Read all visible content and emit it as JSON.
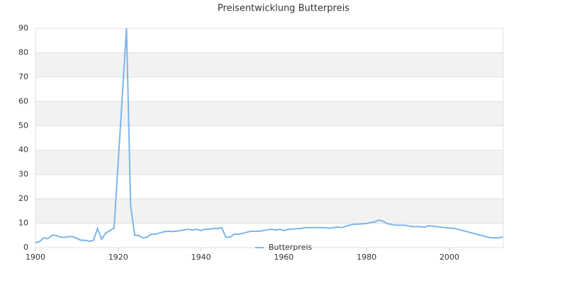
{
  "chart_data": {
    "type": "line",
    "title": "Preisentwicklung Butterpreis",
    "x": [
      1900,
      1901,
      1902,
      1903,
      1904,
      1905,
      1906,
      1907,
      1908,
      1909,
      1910,
      1911,
      1912,
      1913,
      1914,
      1915,
      1916,
      1917,
      1918,
      1919,
      1922,
      1923,
      1924,
      1925,
      1926,
      1927,
      1928,
      1929,
      1930,
      1931,
      1932,
      1933,
      1934,
      1935,
      1936,
      1937,
      1938,
      1939,
      1940,
      1941,
      1942,
      1943,
      1944,
      1945,
      1946,
      1947,
      1948,
      1949,
      1950,
      1951,
      1952,
      1953,
      1954,
      1955,
      1956,
      1957,
      1958,
      1959,
      1960,
      1961,
      1962,
      1963,
      1964,
      1965,
      1966,
      1967,
      1968,
      1969,
      1970,
      1971,
      1972,
      1973,
      1974,
      1975,
      1976,
      1977,
      1978,
      1979,
      1980,
      1981,
      1982,
      1983,
      1984,
      1985,
      1986,
      1987,
      1988,
      1989,
      1990,
      1991,
      1992,
      1993,
      1994,
      1995,
      2000,
      2001,
      2010,
      2012,
      2013
    ],
    "series": [
      {
        "name": "Butterpreis",
        "color": "#7cb5ec",
        "values": [
          2,
          2.5,
          4,
          3.7,
          5,
          5,
          4.3,
          4.2,
          4.5,
          4.5,
          3.8,
          3,
          3,
          2.6,
          3,
          7.8,
          3.5,
          6,
          7,
          8,
          90,
          17,
          5,
          5,
          4,
          4.3,
          5.5,
          5.5,
          6,
          6.5,
          6.7,
          6.6,
          6.7,
          7,
          7.3,
          7.5,
          7.2,
          7.5,
          7,
          7.5,
          7.6,
          7.8,
          7.8,
          8.2,
          4.3,
          4.3,
          5.5,
          5.5,
          5.8,
          6.3,
          6.7,
          6.7,
          6.7,
          7,
          7.3,
          7.5,
          7.2,
          7.5,
          7,
          7.5,
          7.5,
          7.8,
          7.8,
          8.2,
          8.2,
          8.2,
          8.2,
          8.2,
          8.2,
          7.9,
          8.2,
          8.5,
          8.2,
          8.8,
          9.3,
          9.6,
          9.6,
          9.8,
          9.9,
          10.3,
          10.6,
          11.3,
          10.8,
          9.8,
          9.5,
          9.2,
          9.2,
          9.2,
          9,
          8.6,
          8.6,
          8.6,
          8.4,
          9,
          8,
          8,
          4,
          4,
          4.5
        ]
      }
    ],
    "xlim": [
      1900,
      2013
    ],
    "xticks": [
      1900,
      1920,
      1940,
      1960,
      1980,
      2000
    ],
    "ylim": [
      0,
      90
    ],
    "yticks": [
      0,
      10,
      20,
      30,
      40,
      50,
      60,
      70,
      80,
      90
    ],
    "grid": true,
    "legend": "bottom"
  }
}
